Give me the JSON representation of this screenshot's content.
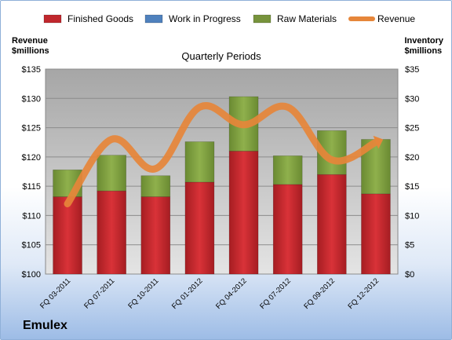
{
  "company": "Emulex",
  "chart_data": {
    "type": "bar",
    "stacked": true,
    "title": "Quarterly Periods",
    "categories": [
      "FQ 03-2011",
      "FQ 07-2011",
      "FQ 10-2011",
      "FQ 01-2012",
      "FQ 04-2012",
      "FQ 07-2012",
      "FQ 09-2012",
      "FQ 12-2012"
    ],
    "ylabel_left": [
      "Revenue",
      "$millions"
    ],
    "ylabel_right": [
      "Inventory",
      "$millions"
    ],
    "ylim_left": [
      100,
      135
    ],
    "ylim_right": [
      0,
      35
    ],
    "yticks_left": [
      "$100",
      "$105",
      "$110",
      "$115",
      "$120",
      "$125",
      "$130",
      "$135"
    ],
    "yticks_right": [
      "$0",
      "$5",
      "$10",
      "$15",
      "$20",
      "$25",
      "$30",
      "$35"
    ],
    "series": [
      {
        "name": "Finished Goods",
        "axis": "right",
        "color": "#c0272d",
        "values": [
          13.2,
          14.2,
          13.2,
          15.7,
          21.0,
          15.3,
          17.0,
          13.7
        ]
      },
      {
        "name": "Work in Progress",
        "axis": "right",
        "color": "#4f81bd",
        "values": [
          0,
          0,
          0,
          0,
          0,
          0,
          0,
          0
        ]
      },
      {
        "name": "Raw Materials",
        "axis": "right",
        "color": "#77933c",
        "values": [
          4.6,
          6.1,
          3.6,
          6.9,
          9.3,
          4.9,
          7.5,
          9.3
        ]
      },
      {
        "name": "Revenue",
        "axis": "left",
        "type": "line",
        "color": "#e6863a",
        "values": [
          112,
          123,
          118,
          128.5,
          125.5,
          128.5,
          119.5,
          122.5
        ]
      }
    ],
    "grid": true,
    "legend": "top"
  }
}
